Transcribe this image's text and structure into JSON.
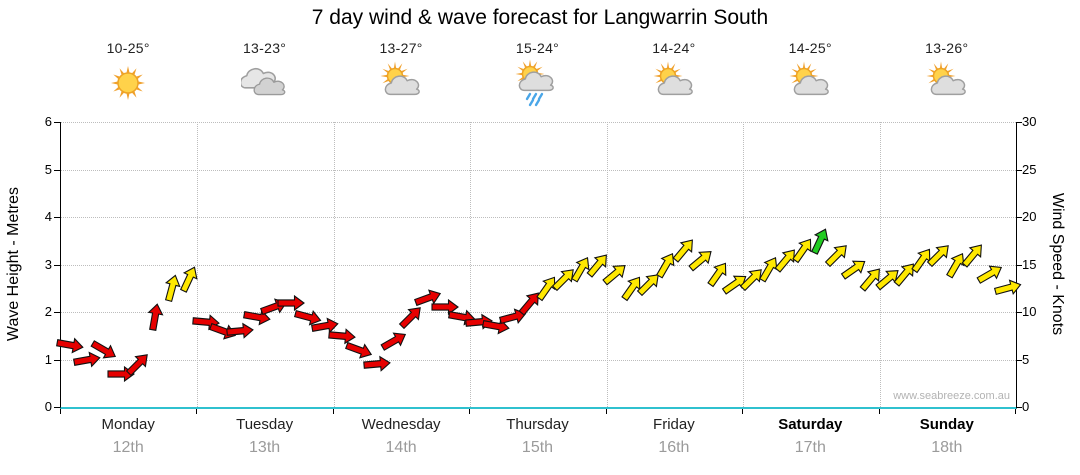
{
  "title": "7 day wind & wave forecast for Langwarrin South",
  "watermark": "www.seabreeze.com.au",
  "colors": {
    "red": "#e60000",
    "yellow": "#ffe800",
    "green": "#22cc22",
    "baseline": "#2fc1cf",
    "grid": "#bdbdbd"
  },
  "axes": {
    "left_label": "Wave Height - Metres",
    "right_label": "Wind Speed - Knots",
    "left_ticks": [
      0,
      1,
      2,
      3,
      4,
      5,
      6
    ],
    "right_ticks": [
      0,
      5,
      10,
      15,
      20,
      25,
      30
    ]
  },
  "days": [
    {
      "name": "Monday",
      "date": "12th",
      "temp": "10-25°",
      "icon": "sun",
      "weekend": false
    },
    {
      "name": "Tuesday",
      "date": "13th",
      "temp": "13-23°",
      "icon": "cloudy",
      "weekend": false
    },
    {
      "name": "Wednesday",
      "date": "14th",
      "temp": "13-27°",
      "icon": "partly-cloudy",
      "weekend": false
    },
    {
      "name": "Thursday",
      "date": "15th",
      "temp": "15-24°",
      "icon": "rain",
      "weekend": false
    },
    {
      "name": "Friday",
      "date": "16th",
      "temp": "14-24°",
      "icon": "partly-cloudy",
      "weekend": false
    },
    {
      "name": "Saturday",
      "date": "17th",
      "temp": "14-25°",
      "icon": "partly-cloudy",
      "weekend": true
    },
    {
      "name": "Sunday",
      "date": "18th",
      "temp": "13-26°",
      "icon": "partly-cloudy",
      "weekend": true
    }
  ],
  "chart_data": {
    "type": "wind-arrows",
    "title": "7 day wind & wave forecast for Langwarrin South",
    "categories": [
      "Monday 12th",
      "Tuesday 13th",
      "Wednesday 14th",
      "Thursday 15th",
      "Friday 16th",
      "Saturday 17th",
      "Sunday 18th"
    ],
    "ylabel_left": "Wave Height - Metres",
    "ylabel_right": "Wind Speed - Knots",
    "wave_axis_range": [
      0,
      6
    ],
    "wind_axis_range_knots": [
      0,
      30
    ],
    "points_per_day": 8,
    "points": [
      {
        "knots": 6.5,
        "dir": 100,
        "color": "red"
      },
      {
        "knots": 5,
        "dir": 80,
        "color": "red"
      },
      {
        "knots": 6,
        "dir": 120,
        "color": "red"
      },
      {
        "knots": 3.5,
        "dir": 90,
        "color": "red"
      },
      {
        "knots": 4.5,
        "dir": 45,
        "color": "red"
      },
      {
        "knots": 9.5,
        "dir": 10,
        "color": "red"
      },
      {
        "knots": 12.5,
        "dir": 15,
        "color": "yellow"
      },
      {
        "knots": 13.5,
        "dir": 25,
        "color": "yellow"
      },
      {
        "knots": 9,
        "dir": 95,
        "color": "red"
      },
      {
        "knots": 8,
        "dir": 110,
        "color": "red"
      },
      {
        "knots": 8,
        "dir": 85,
        "color": "red"
      },
      {
        "knots": 9.5,
        "dir": 100,
        "color": "red"
      },
      {
        "knots": 10.5,
        "dir": 70,
        "color": "red"
      },
      {
        "knots": 11,
        "dir": 90,
        "color": "red"
      },
      {
        "knots": 9.5,
        "dir": 105,
        "color": "red"
      },
      {
        "knots": 8.5,
        "dir": 80,
        "color": "red"
      },
      {
        "knots": 7.5,
        "dir": 95,
        "color": "red"
      },
      {
        "knots": 6,
        "dir": 110,
        "color": "red"
      },
      {
        "knots": 4.5,
        "dir": 85,
        "color": "red"
      },
      {
        "knots": 7,
        "dir": 60,
        "color": "red"
      },
      {
        "knots": 9.5,
        "dir": 45,
        "color": "red"
      },
      {
        "knots": 11.5,
        "dir": 70,
        "color": "red"
      },
      {
        "knots": 10.5,
        "dir": 90,
        "color": "red"
      },
      {
        "knots": 9.5,
        "dir": 100,
        "color": "red"
      },
      {
        "knots": 9,
        "dir": 85,
        "color": "red"
      },
      {
        "knots": 8.5,
        "dir": 100,
        "color": "red"
      },
      {
        "knots": 9.5,
        "dir": 75,
        "color": "red"
      },
      {
        "knots": 11,
        "dir": 40,
        "color": "red"
      },
      {
        "knots": 12.5,
        "dir": 35,
        "color": "yellow"
      },
      {
        "knots": 13.5,
        "dir": 45,
        "color": "yellow"
      },
      {
        "knots": 14.5,
        "dir": 30,
        "color": "yellow"
      },
      {
        "knots": 15,
        "dir": 40,
        "color": "yellow"
      },
      {
        "knots": 14,
        "dir": 50,
        "color": "yellow"
      },
      {
        "knots": 12.5,
        "dir": 35,
        "color": "yellow"
      },
      {
        "knots": 13,
        "dir": 45,
        "color": "yellow"
      },
      {
        "knots": 15,
        "dir": 30,
        "color": "yellow"
      },
      {
        "knots": 16.5,
        "dir": 40,
        "color": "yellow"
      },
      {
        "knots": 15.5,
        "dir": 50,
        "color": "yellow"
      },
      {
        "knots": 14,
        "dir": 35,
        "color": "yellow"
      },
      {
        "knots": 13,
        "dir": 55,
        "color": "yellow"
      },
      {
        "knots": 13.5,
        "dir": 45,
        "color": "yellow"
      },
      {
        "knots": 14.5,
        "dir": 30,
        "color": "yellow"
      },
      {
        "knots": 15.5,
        "dir": 40,
        "color": "yellow"
      },
      {
        "knots": 16.5,
        "dir": 35,
        "color": "yellow"
      },
      {
        "knots": 17.5,
        "dir": 25,
        "color": "green"
      },
      {
        "knots": 16,
        "dir": 45,
        "color": "yellow"
      },
      {
        "knots": 14.5,
        "dir": 55,
        "color": "yellow"
      },
      {
        "knots": 13.5,
        "dir": 40,
        "color": "yellow"
      },
      {
        "knots": 13.5,
        "dir": 50,
        "color": "yellow"
      },
      {
        "knots": 14,
        "dir": 40,
        "color": "yellow"
      },
      {
        "knots": 15.5,
        "dir": 35,
        "color": "yellow"
      },
      {
        "knots": 16,
        "dir": 45,
        "color": "yellow"
      },
      {
        "knots": 15,
        "dir": 30,
        "color": "yellow"
      },
      {
        "knots": 16,
        "dir": 40,
        "color": "yellow"
      },
      {
        "knots": 14,
        "dir": 60,
        "color": "yellow"
      },
      {
        "knots": 12.5,
        "dir": 75,
        "color": "yellow"
      }
    ]
  }
}
